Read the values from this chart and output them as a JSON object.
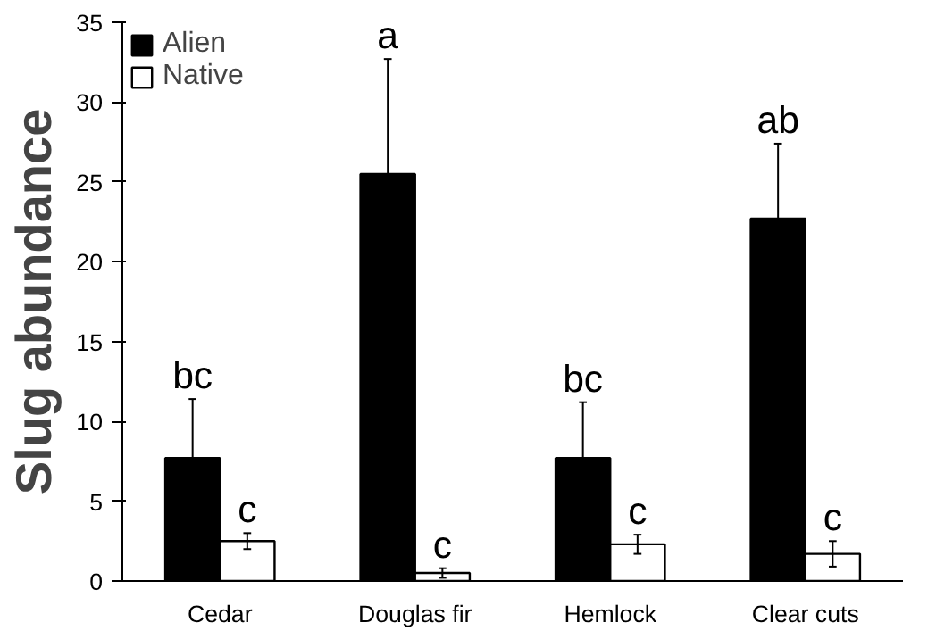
{
  "chart_data": {
    "type": "bar",
    "ylabel": "Slug abundance",
    "categories": [
      "Cedar",
      "Douglas fir",
      "Hemlock",
      "Clear cuts"
    ],
    "series": [
      {
        "name": "Alien",
        "color": "#000000",
        "values": [
          7.7,
          25.5,
          7.7,
          22.7
        ],
        "errors": [
          [
            7.7,
            11.4
          ],
          [
            25.5,
            32.7
          ],
          [
            7.7,
            11.2
          ],
          [
            22.7,
            27.4
          ]
        ]
      },
      {
        "name": "Native",
        "color": "#ffffff",
        "values": [
          2.5,
          0.5,
          2.3,
          1.7
        ],
        "errors": [
          0.5,
          0.3,
          0.6,
          0.8
        ]
      }
    ],
    "ylim": [
      0,
      35
    ],
    "yticks": [
      0,
      5,
      10,
      15,
      20,
      25,
      30,
      35
    ],
    "grid": false,
    "legend": "top left",
    "annotations": [
      "bc",
      "c",
      "a",
      "c",
      "bc",
      "c",
      "ab",
      "c"
    ]
  }
}
